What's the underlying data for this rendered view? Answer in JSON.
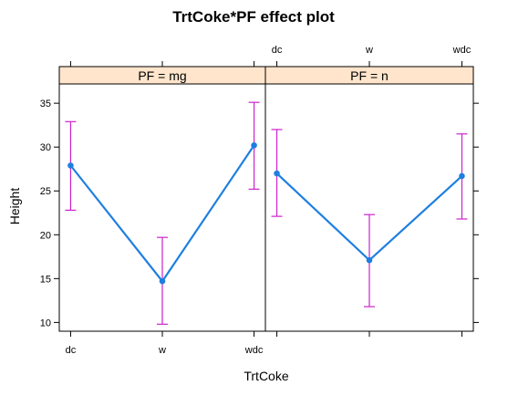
{
  "chart_data": {
    "type": "line",
    "title": "TrtCoke*PF effect plot",
    "xlabel": "TrtCoke",
    "ylabel": "Height",
    "categories": [
      "dc",
      "w",
      "wdc"
    ],
    "ylim": [
      9.0,
      37.2
    ],
    "yticks": [
      10,
      15,
      20,
      25,
      30,
      35
    ],
    "line_color": "#1e7fe0",
    "errorbar_color": "#cc22cc",
    "strip_color": "#ffe5cc",
    "panels": [
      {
        "strip_label": "PF = mg",
        "values": [
          27.9,
          14.7,
          30.2
        ],
        "lower": [
          22.8,
          9.8,
          25.2
        ],
        "upper": [
          32.9,
          19.7,
          35.1
        ]
      },
      {
        "strip_label": "PF = n",
        "values": [
          27.0,
          17.1,
          26.7
        ],
        "lower": [
          22.1,
          11.8,
          21.8
        ],
        "upper": [
          32.0,
          22.3,
          31.5
        ]
      }
    ]
  }
}
